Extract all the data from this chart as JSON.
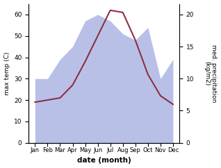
{
  "months": [
    1,
    2,
    3,
    4,
    5,
    6,
    7,
    8,
    9,
    10,
    11,
    12
  ],
  "month_labels": [
    "Jan",
    "Feb",
    "Mar",
    "Apr",
    "May",
    "Jun",
    "Jul",
    "Aug",
    "Sep",
    "Oct",
    "Nov",
    "Dec"
  ],
  "temperature": [
    19,
    20,
    21,
    27,
    38,
    50,
    62,
    61,
    48,
    32,
    22,
    18
  ],
  "precipitation": [
    10,
    10,
    13,
    15,
    19,
    20,
    19,
    17,
    16,
    18,
    10,
    13
  ],
  "temp_color": "#8b3040",
  "precip_fill_color": "#b8c0e8",
  "ylabel_left": "max temp (C)",
  "ylabel_right": "med. precipitation\n(kg/m2)",
  "xlabel": "date (month)",
  "ylim_left": [
    0,
    65
  ],
  "ylim_right": [
    0,
    21.67
  ],
  "yticks_left": [
    0,
    10,
    20,
    30,
    40,
    50,
    60
  ],
  "yticks_right": [
    0,
    5,
    10,
    15,
    20
  ],
  "xlim": [
    1,
    12
  ]
}
